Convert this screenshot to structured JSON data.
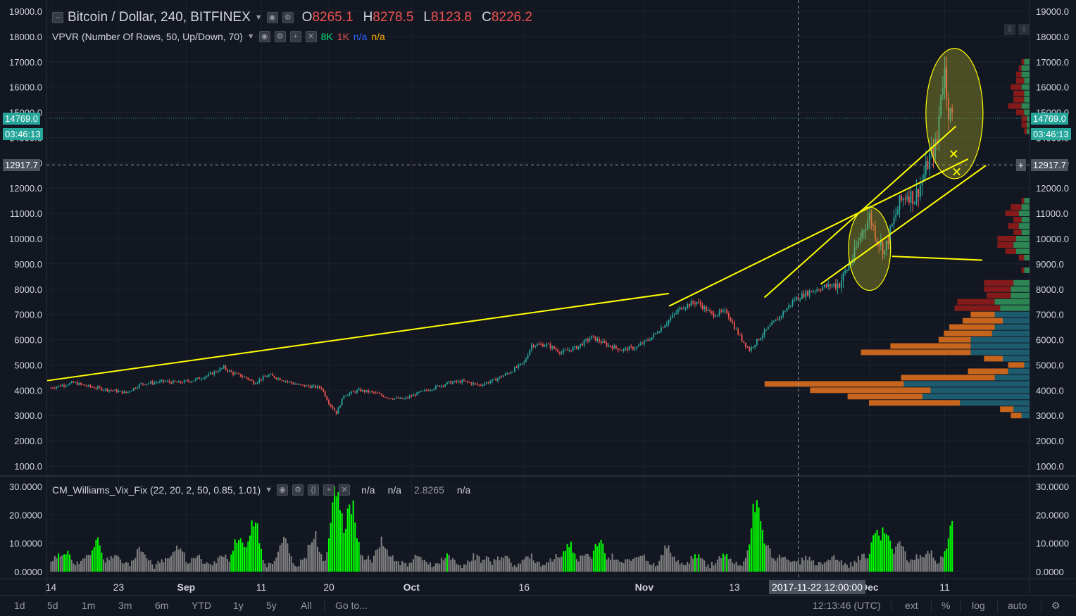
{
  "header": {
    "title": "Bitcoin / Dollar, 240, BITFINEX",
    "ohlc": [
      {
        "label": "O",
        "value": "8265.1"
      },
      {
        "label": "H",
        "value": "8278.5"
      },
      {
        "label": "L",
        "value": "8123.8"
      },
      {
        "label": "C",
        "value": "8226.2"
      }
    ]
  },
  "indicator_vpvr": {
    "name": "VPVR (Number Of Rows, 50, Up/Down, 70)",
    "values": [
      {
        "text": "8K",
        "color": "#00e676"
      },
      {
        "text": "1K",
        "color": "#ef5350"
      },
      {
        "text": "n/a",
        "color": "#2962ff"
      },
      {
        "text": "n/a",
        "color": "#ffb300"
      }
    ]
  },
  "indicator_vix": {
    "name": "CM_Williams_Vix_Fix (22, 20, 2, 50, 0.85, 1.01)",
    "values": [
      "n/a",
      "n/a",
      "2.8265",
      "n/a"
    ]
  },
  "price_tags": {
    "last_price": "14769.0",
    "countdown": "03:46:13",
    "crosshair_price": "12917.7",
    "crosshair_date": "2017-11-22 12:00:00"
  },
  "bottom_bar": {
    "ranges": [
      "1d",
      "5d",
      "1m",
      "3m",
      "6m",
      "YTD",
      "1y",
      "5y",
      "All"
    ],
    "goto": "Go to...",
    "clock": "12:13:46 (UTC)",
    "options": [
      "ext",
      "%",
      "log",
      "auto"
    ]
  },
  "colors": {
    "background": "#131722",
    "grid": "#1e222d",
    "up": "#26a69a",
    "down": "#ef5350",
    "trendline": "#ffff00",
    "vix_gray": "#808080",
    "vix_green": "#00ff00",
    "last_price_tag": "#26a69a",
    "vpvr_up_low": "#1e5f74",
    "vpvr_down_low": "#d2691e",
    "vpvr_up_high": "#2e8b57",
    "vpvr_down_high": "#8b1a1a"
  },
  "chart_data": [
    {
      "type": "candlestick",
      "title": "Bitcoin / Dollar, 240, BITFINEX",
      "ylim": [
        1000,
        19000
      ],
      "y_ticks": [
        "19000.0",
        "18000.0",
        "17000.0",
        "16000.0",
        "15000.0",
        "14000.0",
        "13000.0",
        "12000.0",
        "11000.0",
        "10000.0",
        "9000.0",
        "8000.0",
        "7000.0",
        "6000.0",
        "5000.0",
        "4000.0",
        "3000.0",
        "2000.0",
        "1000.0"
      ],
      "x_ticks": [
        "14",
        "23",
        "Sep",
        "11",
        "20",
        "Oct",
        "16",
        "Nov",
        "13",
        "Dec",
        "11"
      ],
      "x_tick_days": [
        0,
        9,
        18,
        28,
        37,
        48,
        63,
        79,
        91,
        109,
        119
      ],
      "x_range_days": [
        -0.6,
        130.3
      ],
      "close_path": [
        [
          0,
          4100
        ],
        [
          3,
          4300
        ],
        [
          5,
          4150
        ],
        [
          8,
          4000
        ],
        [
          10,
          3900
        ],
        [
          12,
          4250
        ],
        [
          15,
          4350
        ],
        [
          17,
          4300
        ],
        [
          19,
          4400
        ],
        [
          21,
          4600
        ],
        [
          23,
          4900
        ],
        [
          24,
          4700
        ],
        [
          26,
          4500
        ],
        [
          27,
          4300
        ],
        [
          29,
          4600
        ],
        [
          31,
          4400
        ],
        [
          33,
          4200
        ],
        [
          36,
          4100
        ],
        [
          37,
          3500
        ],
        [
          38,
          3100
        ],
        [
          39,
          3800
        ],
        [
          41,
          4000
        ],
        [
          43,
          3900
        ],
        [
          45,
          3700
        ],
        [
          47,
          3650
        ],
        [
          49,
          3900
        ],
        [
          51,
          4100
        ],
        [
          53,
          4300
        ],
        [
          55,
          4350
        ],
        [
          57,
          4200
        ],
        [
          59,
          4400
        ],
        [
          61,
          4700
        ],
        [
          63,
          5100
        ],
        [
          64,
          5800
        ],
        [
          66,
          5800
        ],
        [
          68,
          5500
        ],
        [
          70,
          5700
        ],
        [
          72,
          6100
        ],
        [
          74,
          5800
        ],
        [
          76,
          5600
        ],
        [
          78,
          5700
        ],
        [
          80,
          6100
        ],
        [
          82,
          6700
        ],
        [
          84,
          7300
        ],
        [
          86,
          7500
        ],
        [
          88,
          7000
        ],
        [
          90,
          7100
        ],
        [
          91,
          6500
        ],
        [
          92,
          6000
        ],
        [
          93,
          5600
        ],
        [
          95,
          6300
        ],
        [
          97,
          6900
        ],
        [
          99,
          7600
        ],
        [
          101,
          7900
        ],
        [
          103,
          8100
        ],
        [
          104,
          8150
        ],
        [
          105,
          8230
        ],
        [
          106,
          8800
        ],
        [
          107,
          9400
        ],
        [
          108,
          10300
        ],
        [
          109,
          10900
        ],
        [
          110,
          10000
        ],
        [
          111,
          9500
        ],
        [
          112,
          10500
        ],
        [
          113,
          11400
        ],
        [
          114,
          11800
        ],
        [
          115,
          11600
        ],
        [
          116,
          12300
        ],
        [
          117,
          13200
        ],
        [
          118,
          13800
        ],
        [
          118.5,
          15900
        ],
        [
          119,
          16600
        ],
        [
          119.5,
          15100
        ],
        [
          120,
          14769
        ]
      ]
    },
    {
      "type": "histogram",
      "title": "CM_Williams_Vix_Fix (22, 20, 2, 50, 0.85, 1.01)",
      "ylim": [
        0,
        30
      ],
      "y_ticks": [
        "30.0000",
        "20.0000",
        "10.0000",
        "0.0000"
      ],
      "spikes": [
        [
          2,
          8,
          true
        ],
        [
          6,
          12,
          true
        ],
        [
          12,
          9,
          false
        ],
        [
          17,
          10,
          false
        ],
        [
          21,
          3,
          true
        ],
        [
          25,
          14,
          true
        ],
        [
          27,
          20,
          true
        ],
        [
          31,
          12,
          false
        ],
        [
          35,
          14,
          false
        ],
        [
          38,
          30,
          true
        ],
        [
          40,
          25,
          true
        ],
        [
          44,
          12,
          false
        ],
        [
          49,
          3,
          false
        ],
        [
          53,
          4,
          true
        ],
        [
          58,
          5,
          true
        ],
        [
          63,
          4,
          false
        ],
        [
          69,
          11,
          true
        ],
        [
          73,
          11,
          true
        ],
        [
          77,
          5,
          true
        ],
        [
          82,
          9,
          false
        ],
        [
          86,
          6,
          true
        ],
        [
          90,
          6,
          true
        ],
        [
          95,
          12,
          false
        ],
        [
          94,
          27,
          true
        ],
        [
          99,
          4,
          false
        ],
        [
          103,
          3,
          false
        ],
        [
          110,
          16,
          true
        ],
        [
          111,
          18,
          true
        ],
        [
          113,
          12,
          false
        ],
        [
          117,
          8,
          false
        ],
        [
          120,
          17,
          true
        ]
      ]
    },
    {
      "type": "volume_profile",
      "title": "VPVR (Number Of Rows, 50, Up/Down, 70)",
      "rows": [
        [
          17000,
          2,
          1
        ],
        [
          16750,
          3,
          1
        ],
        [
          16500,
          3,
          2
        ],
        [
          16250,
          2,
          3
        ],
        [
          16000,
          3,
          4
        ],
        [
          15750,
          2,
          4
        ],
        [
          15500,
          2,
          4
        ],
        [
          15250,
          3,
          5
        ],
        [
          15000,
          2,
          3
        ],
        [
          14750,
          1,
          2
        ],
        [
          14500,
          1,
          2
        ],
        [
          14250,
          1,
          1
        ],
        [
          11500,
          2,
          1
        ],
        [
          11250,
          3,
          4
        ],
        [
          11000,
          4,
          5
        ],
        [
          10750,
          3,
          3
        ],
        [
          10500,
          4,
          4
        ],
        [
          10250,
          3,
          3
        ],
        [
          10000,
          5,
          7
        ],
        [
          9750,
          6,
          6
        ],
        [
          9500,
          5,
          4
        ],
        [
          9250,
          2,
          2
        ],
        [
          8750,
          2,
          1
        ],
        [
          8250,
          6,
          11
        ],
        [
          8000,
          7,
          10
        ],
        [
          7750,
          7,
          9
        ],
        [
          7500,
          13,
          14
        ],
        [
          7250,
          11,
          17
        ],
        [
          7000,
          13,
          9
        ],
        [
          6750,
          10,
          15
        ],
        [
          6500,
          13,
          17
        ],
        [
          6250,
          14,
          18
        ],
        [
          6000,
          22,
          12
        ],
        [
          5750,
          22,
          30
        ],
        [
          5500,
          22,
          41
        ],
        [
          5250,
          10,
          7
        ],
        [
          5000,
          2,
          6
        ],
        [
          4750,
          8,
          15
        ],
        [
          4500,
          13,
          35
        ],
        [
          4250,
          47,
          52
        ],
        [
          4000,
          37,
          45
        ],
        [
          3750,
          40,
          28
        ],
        [
          3500,
          26,
          34
        ],
        [
          3250,
          6,
          5
        ],
        [
          3000,
          3,
          4
        ]
      ]
    }
  ],
  "annotations": {
    "trendlines": [
      {
        "from": [
          -0.5,
          4380
        ],
        "to": [
          82.3,
          7830
        ]
      },
      {
        "from": [
          82.3,
          7330
        ],
        "to": [
          122.1,
          13150
        ]
      },
      {
        "from": [
          95,
          7670
        ],
        "to": [
          120.5,
          14450
        ]
      },
      {
        "from": [
          102.5,
          8200
        ],
        "to": [
          124.5,
          12900
        ]
      },
      {
        "from": [
          112,
          9300
        ],
        "to": [
          124,
          9150
        ]
      }
    ],
    "ellipses": [
      {
        "center": [
          109,
          9600
        ],
        "rx_days": 2.8,
        "ry_price": 1650
      },
      {
        "center": [
          120.3,
          14950
        ],
        "rx_days": 3.8,
        "ry_price": 2580
      }
    ],
    "markers": [
      {
        "at": [
          120.2,
          13350
        ],
        "label": "✕"
      },
      {
        "at": [
          120.6,
          12630
        ],
        "label": "✕"
      }
    ]
  }
}
